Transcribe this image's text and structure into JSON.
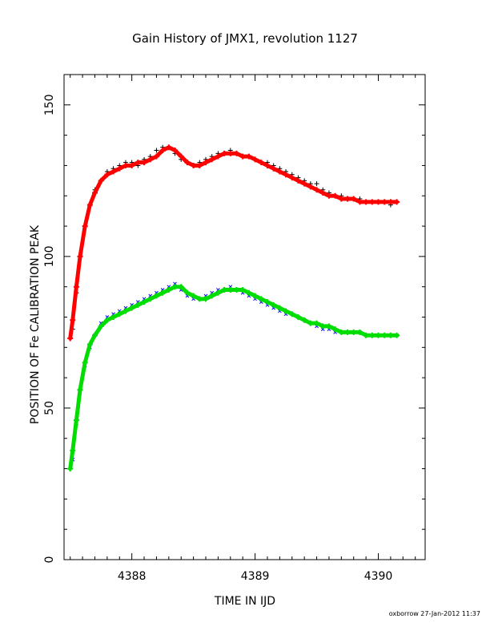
{
  "chart_data": {
    "type": "scatter",
    "title": "Gain History of JMX1, revolution 1127",
    "xlabel": "TIME IN IJD",
    "ylabel": "POSITION OF Fe CALIBRATION PEAK",
    "footer": "oxborrow 27-Jan-2012 11:37",
    "xlim": [
      4387.45,
      4390.38
    ],
    "ylim": [
      0,
      160
    ],
    "x_ticks": [
      4388,
      4389,
      4390
    ],
    "x_tick_labels": [
      "4388",
      "4389",
      "4390"
    ],
    "y_ticks": [
      0,
      50,
      100,
      150
    ],
    "y_tick_labels": [
      "0",
      "50",
      "100",
      "150"
    ],
    "grid": false,
    "legend": "none",
    "series": [
      {
        "marker": "+",
        "color": "#000000",
        "style": "scatter",
        "x": [
          4387.52,
          4387.55,
          4387.58,
          4387.62,
          4387.66,
          4387.7,
          4387.75,
          4387.8,
          4387.85,
          4387.9,
          4387.95,
          4388.0,
          4388.05,
          4388.1,
          4388.15,
          4388.2,
          4388.25,
          4388.3,
          4388.35,
          4388.4,
          4388.45,
          4388.5,
          4388.55,
          4388.6,
          4388.65,
          4388.7,
          4388.75,
          4388.8,
          4388.85,
          4388.9,
          4388.95,
          4389.0,
          4389.05,
          4389.1,
          4389.15,
          4389.2,
          4389.25,
          4389.3,
          4389.35,
          4389.4,
          4389.45,
          4389.5,
          4389.55,
          4389.6,
          4389.65,
          4389.7,
          4389.75,
          4389.8,
          4389.85,
          4389.9,
          4389.95,
          4390.0,
          4390.05,
          4390.1,
          4390.15
        ],
        "y": [
          76,
          88,
          100,
          110,
          117,
          122,
          125,
          128,
          129,
          130,
          131,
          131,
          130,
          132,
          133,
          135,
          136,
          136,
          134,
          132,
          131,
          130,
          131,
          132,
          133,
          134,
          134,
          135,
          134,
          133,
          133,
          132,
          131,
          131,
          130,
          129,
          128,
          127,
          126,
          125,
          124,
          124,
          122,
          121,
          120,
          120,
          119,
          119,
          119,
          118,
          118,
          118,
          118,
          117,
          118
        ]
      },
      {
        "marker": "+",
        "color": "#ff0000",
        "style": "dense",
        "x": [
          4387.5,
          4387.52,
          4387.55,
          4387.58,
          4387.62,
          4387.66,
          4387.7,
          4387.75,
          4387.8,
          4387.85,
          4387.9,
          4387.95,
          4388.0,
          4388.05,
          4388.1,
          4388.15,
          4388.2,
          4388.25,
          4388.3,
          4388.35,
          4388.4,
          4388.45,
          4388.5,
          4388.55,
          4388.6,
          4388.65,
          4388.7,
          4388.75,
          4388.8,
          4388.85,
          4388.9,
          4388.95,
          4389.0,
          4389.05,
          4389.1,
          4389.15,
          4389.2,
          4389.25,
          4389.3,
          4389.35,
          4389.4,
          4389.45,
          4389.5,
          4389.55,
          4389.6,
          4389.65,
          4389.7,
          4389.75,
          4389.8,
          4389.85,
          4389.9,
          4389.95,
          4390.0,
          4390.05,
          4390.1,
          4390.15
        ],
        "y": [
          73,
          79,
          90,
          100,
          110,
          117,
          121,
          125,
          127,
          128,
          129,
          130,
          130,
          131,
          131,
          132,
          133,
          135,
          136,
          135,
          133,
          131,
          130,
          130,
          131,
          132,
          133,
          134,
          134,
          134,
          133,
          133,
          132,
          131,
          130,
          129,
          128,
          127,
          126,
          125,
          124,
          123,
          122,
          121,
          120,
          120,
          119,
          119,
          119,
          118,
          118,
          118,
          118,
          118,
          118,
          118
        ]
      },
      {
        "marker": "x",
        "color": "#0000ff",
        "style": "scatter",
        "x": [
          4387.52,
          4387.55,
          4387.58,
          4387.62,
          4387.66,
          4387.7,
          4387.75,
          4387.8,
          4387.85,
          4387.9,
          4387.95,
          4388.0,
          4388.05,
          4388.1,
          4388.15,
          4388.2,
          4388.25,
          4388.3,
          4388.35,
          4388.4,
          4388.45,
          4388.5,
          4388.55,
          4388.6,
          4388.65,
          4388.7,
          4388.75,
          4388.8,
          4388.85,
          4388.9,
          4388.95,
          4389.0,
          4389.05,
          4389.1,
          4389.15,
          4389.2,
          4389.25,
          4389.3,
          4389.35,
          4389.4,
          4389.45,
          4389.5,
          4389.55,
          4389.6,
          4389.65,
          4389.7,
          4389.75,
          4389.8,
          4389.85,
          4389.9,
          4389.95,
          4390.0,
          4390.05,
          4390.1,
          4390.15
        ],
        "y": [
          33,
          45,
          56,
          64,
          70,
          74,
          78,
          80,
          81,
          82,
          83,
          84,
          85,
          86,
          87,
          88,
          89,
          90,
          91,
          89,
          87,
          86,
          86,
          87,
          88,
          89,
          89,
          90,
          89,
          88,
          87,
          86,
          85,
          84,
          83,
          82,
          81,
          81,
          80,
          79,
          78,
          77,
          76,
          76,
          75,
          75,
          75,
          75,
          75,
          74,
          74,
          74,
          74,
          74,
          74
        ]
      },
      {
        "marker": "+",
        "color": "#00dd00",
        "style": "dense",
        "x": [
          4387.5,
          4387.52,
          4387.55,
          4387.58,
          4387.62,
          4387.66,
          4387.7,
          4387.75,
          4387.8,
          4387.85,
          4387.9,
          4387.95,
          4388.0,
          4388.05,
          4388.1,
          4388.15,
          4388.2,
          4388.25,
          4388.3,
          4388.35,
          4388.4,
          4388.45,
          4388.5,
          4388.55,
          4388.6,
          4388.65,
          4388.7,
          4388.75,
          4388.8,
          4388.85,
          4388.9,
          4388.95,
          4389.0,
          4389.05,
          4389.1,
          4389.15,
          4389.2,
          4389.25,
          4389.3,
          4389.35,
          4389.4,
          4389.45,
          4389.5,
          4389.55,
          4389.6,
          4389.65,
          4389.7,
          4389.75,
          4389.8,
          4389.85,
          4389.9,
          4389.95,
          4390.0,
          4390.05,
          4390.1,
          4390.15
        ],
        "y": [
          30,
          36,
          46,
          56,
          65,
          71,
          74,
          77,
          79,
          80,
          81,
          82,
          83,
          84,
          85,
          86,
          87,
          88,
          89,
          90,
          90,
          88,
          87,
          86,
          86,
          87,
          88,
          89,
          89,
          89,
          89,
          88,
          87,
          86,
          85,
          84,
          83,
          82,
          81,
          80,
          79,
          78,
          78,
          77,
          77,
          76,
          75,
          75,
          75,
          75,
          74,
          74,
          74,
          74,
          74,
          74
        ]
      }
    ]
  }
}
